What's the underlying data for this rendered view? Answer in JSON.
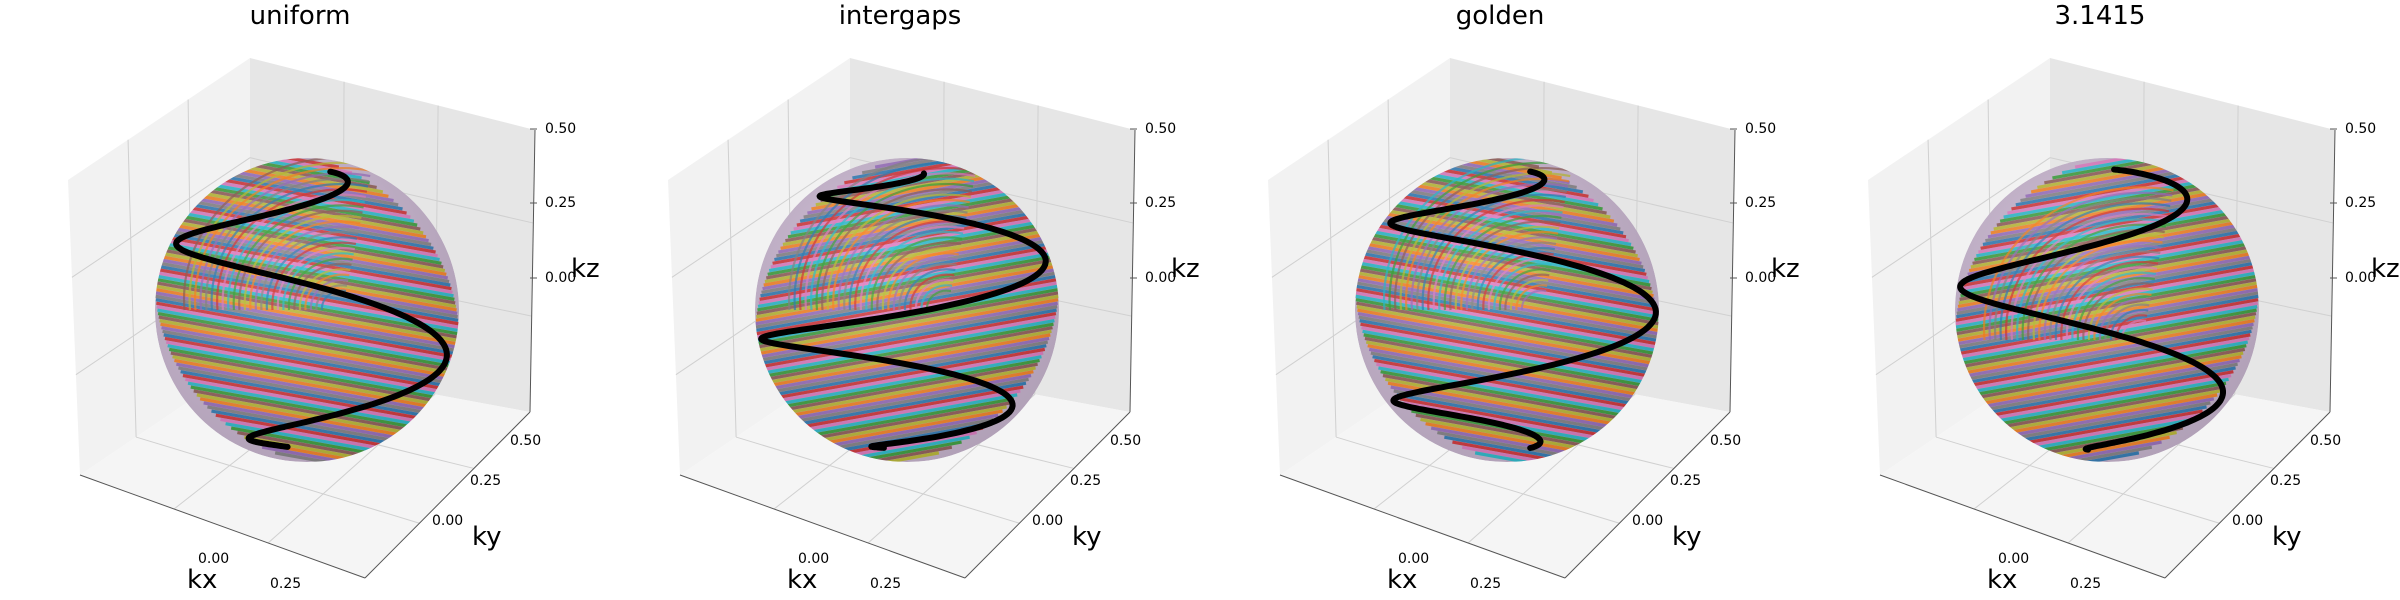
{
  "figure": {
    "background": "#ffffff",
    "pane_colors": {
      "left": "#f2f2f2",
      "right": "#e6e6e6",
      "floor": "#f5f5f5"
    },
    "grid_color": "#d0d0d0",
    "highlight_color": "#000000"
  },
  "chart_data": [
    {
      "type": "scatter-3d",
      "title": "uniform",
      "xlabel": "kx",
      "ylabel": "ky",
      "zlabel": "kz",
      "xlim": [
        -0.5,
        0.5
      ],
      "ylim": [
        -0.5,
        0.5
      ],
      "zlim": [
        -0.5,
        0.5
      ],
      "xticks": [
        "0.00",
        "0.25"
      ],
      "yticks": [
        "0.00",
        "0.25",
        "0.50"
      ],
      "zticks": [
        "0.00",
        "0.25",
        "0.50"
      ],
      "grid": true,
      "sphere_radius": 0.5,
      "n_interleaves": 64,
      "highlighted_interleave": {
        "azimuth_start_deg": -40,
        "turns": 1.6
      }
    },
    {
      "type": "scatter-3d",
      "title": "intergaps",
      "xlabel": "kx",
      "ylabel": "ky",
      "zlabel": "kz",
      "xlim": [
        -0.5,
        0.5
      ],
      "ylim": [
        -0.5,
        0.5
      ],
      "zlim": [
        -0.5,
        0.5
      ],
      "xticks": [
        "0.00",
        "0.25"
      ],
      "yticks": [
        "0.00",
        "0.25",
        "0.50"
      ],
      "zticks": [
        "0.00",
        "0.25",
        "0.50"
      ],
      "grid": true,
      "sphere_radius": 0.5,
      "n_interleaves": 64,
      "highlighted_interleave": {
        "azimuth_start_deg": 150,
        "turns": 2.4
      }
    },
    {
      "type": "scatter-3d",
      "title": "golden",
      "xlabel": "kx",
      "ylabel": "ky",
      "zlabel": "kz",
      "xlim": [
        -0.5,
        0.5
      ],
      "ylim": [
        -0.5,
        0.5
      ],
      "zlim": [
        -0.5,
        0.5
      ],
      "xticks": [
        "0.00",
        "0.25"
      ],
      "yticks": [
        "0.00",
        "0.25",
        "0.50"
      ],
      "zticks": [
        "0.00",
        "0.25",
        "0.50"
      ],
      "grid": true,
      "sphere_radius": 0.5,
      "n_interleaves": 64,
      "highlighted_interleave": {
        "azimuth_start_deg": 30,
        "turns": 2.0
      }
    },
    {
      "type": "scatter-3d",
      "title": "3.1415",
      "xlabel": "kx",
      "ylabel": "ky",
      "zlabel": "kz",
      "xlim": [
        -0.5,
        0.5
      ],
      "ylim": [
        -0.5,
        0.5
      ],
      "zlim": [
        -0.5,
        0.5
      ],
      "xticks": [
        "0.00",
        "0.25"
      ],
      "yticks": [
        "0.00",
        "0.25",
        "0.50"
      ],
      "zticks": [
        "0.00",
        "0.25",
        "0.50"
      ],
      "grid": true,
      "sphere_radius": 0.5,
      "n_interleaves": 64,
      "highlighted_interleave": {
        "azimuth_start_deg": -110,
        "turns": 1.6
      }
    }
  ]
}
